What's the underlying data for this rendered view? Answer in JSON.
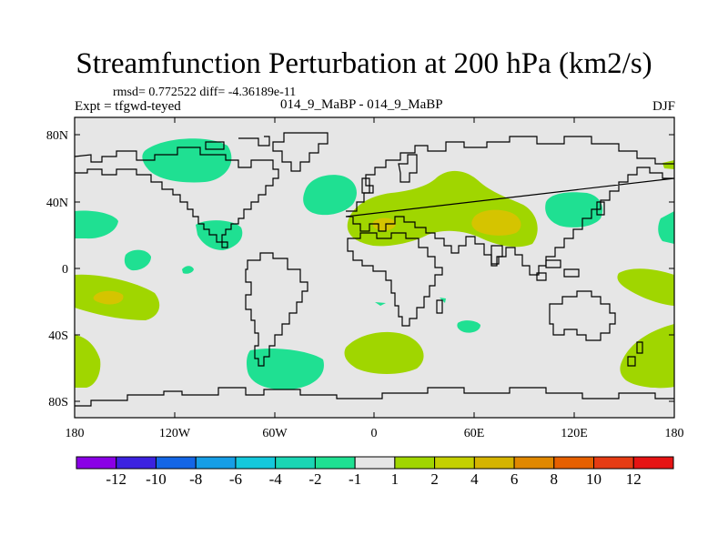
{
  "title": "Streamfunction Perturbation at 200 hPa (km2/s)",
  "stats": "rmsd= 0.772522 diff= -4.36189e-11",
  "experiment": "Expt = tfgwd-teyed",
  "runs": "014_9_MaBP - 014_9_MaBP",
  "season": "DJF",
  "colors": {
    "background": "#e6e6e6",
    "neg1": "#1fe092",
    "pos1": "#a0d600",
    "pos2": "#d5c400",
    "coast": "#000000"
  },
  "map_axes": {
    "x_ticks": [
      "180",
      "120W",
      "60W",
      "0",
      "60E",
      "120E",
      "180"
    ],
    "y_ticks": [
      "80N",
      "40N",
      "0",
      "40S",
      "80S"
    ]
  },
  "colorbar": {
    "colors": [
      "#8a00e6",
      "#3c22e0",
      "#1466e6",
      "#169ee6",
      "#14c8dc",
      "#1ad6b4",
      "#1fe092",
      "#e6e6e6",
      "#a0d600",
      "#c4d000",
      "#d5b400",
      "#e08800",
      "#e66000",
      "#e63c14",
      "#e61414"
    ],
    "labels": [
      "-12",
      "-10",
      "-8",
      "-6",
      "-4",
      "-2",
      "-1",
      "1",
      "2",
      "4",
      "6",
      "8",
      "10",
      "12"
    ]
  }
}
